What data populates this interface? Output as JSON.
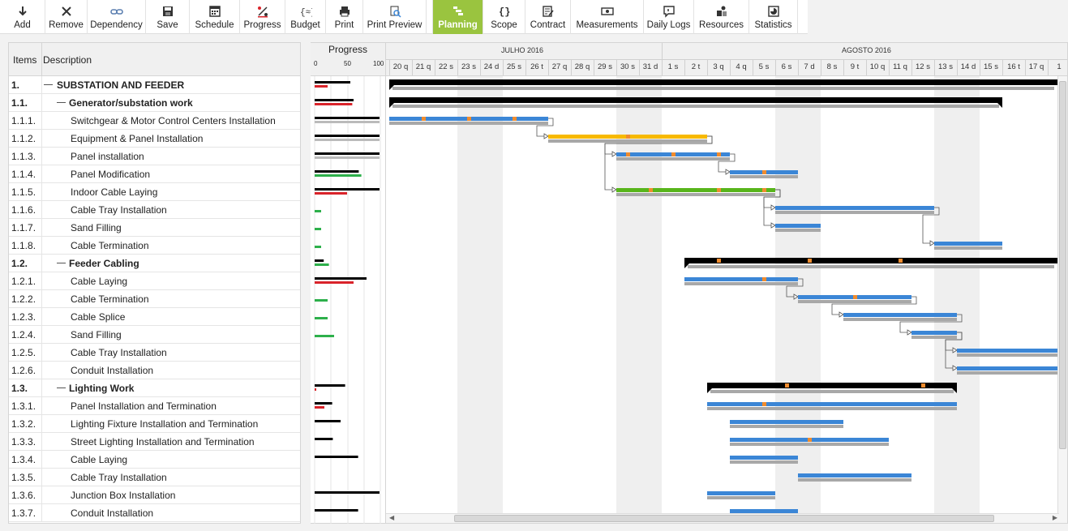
{
  "toolbar": {
    "buttons": [
      {
        "label": "Add",
        "icon": "arrow-down-icon"
      },
      {
        "label": "Remove",
        "icon": "close-icon"
      },
      {
        "label": "Dependency",
        "icon": "link-icon"
      },
      {
        "label": "Save",
        "icon": "floppy-icon"
      },
      {
        "label": "Schedule",
        "icon": "calendar-icon"
      },
      {
        "label": "Progress",
        "icon": "percent-icon"
      },
      {
        "label": "Budget",
        "icon": "money-icon"
      },
      {
        "label": "Print",
        "icon": "printer-icon"
      },
      {
        "label": "Print Preview",
        "icon": "print-preview-icon"
      },
      {
        "label": "Planning",
        "icon": "planning-icon",
        "active": true
      },
      {
        "label": "Scope",
        "icon": "braces-icon"
      },
      {
        "label": "Contract",
        "icon": "contract-icon"
      },
      {
        "label": "Measurements",
        "icon": "ruler-icon"
      },
      {
        "label": "Daily Logs",
        "icon": "chat-icon"
      },
      {
        "label": "Resources",
        "icon": "resources-icon"
      },
      {
        "label": "Statistics",
        "icon": "chart-icon"
      }
    ],
    "active_color": "#9ac43f"
  },
  "grid": {
    "col_items": "Items",
    "col_description": "Description",
    "rows": [
      {
        "num": "1.",
        "desc": "SUBSTATION AND FEEDER",
        "level": 0,
        "group": true
      },
      {
        "num": "1.1.",
        "desc": "Generator/substation work",
        "level": 1,
        "group": true
      },
      {
        "num": "1.1.1.",
        "desc": "Switchgear & Motor Control Centers Installation",
        "level": 2
      },
      {
        "num": "1.1.2.",
        "desc": "Equipment & Panel Installation",
        "level": 2
      },
      {
        "num": "1.1.3.",
        "desc": "Panel installation",
        "level": 2
      },
      {
        "num": "1.1.4.",
        "desc": "Panel Modification",
        "level": 2
      },
      {
        "num": "1.1.5.",
        "desc": "Indoor Cable Laying",
        "level": 2
      },
      {
        "num": "1.1.6.",
        "desc": "Cable Tray Installation",
        "level": 2
      },
      {
        "num": "1.1.7.",
        "desc": "Sand Filling",
        "level": 2
      },
      {
        "num": "1.1.8.",
        "desc": "Cable Termination",
        "level": 2
      },
      {
        "num": "1.2.",
        "desc": "Feeder Cabling",
        "level": 1,
        "group": true
      },
      {
        "num": "1.2.1.",
        "desc": "Cable Laying",
        "level": 2
      },
      {
        "num": "1.2.2.",
        "desc": "Cable Termination",
        "level": 2
      },
      {
        "num": "1.2.3.",
        "desc": "Cable Splice",
        "level": 2
      },
      {
        "num": "1.2.4.",
        "desc": "Sand Filling",
        "level": 2
      },
      {
        "num": "1.2.5.",
        "desc": "Cable Tray Installation",
        "level": 2
      },
      {
        "num": "1.2.6.",
        "desc": "Conduit Installation",
        "level": 2
      },
      {
        "num": "1.3.",
        "desc": "Lighting Work",
        "level": 1,
        "group": true
      },
      {
        "num": "1.3.1.",
        "desc": "Panel Installation and Termination",
        "level": 2
      },
      {
        "num": "1.3.2.",
        "desc": "Lighting Fixture Installation and Termination",
        "level": 2
      },
      {
        "num": "1.3.3.",
        "desc": "Street Lighting Installation and Termination",
        "level": 2
      },
      {
        "num": "1.3.4.",
        "desc": "Cable Laying",
        "level": 2
      },
      {
        "num": "1.3.5.",
        "desc": "Cable Tray Installation",
        "level": 2
      },
      {
        "num": "1.3.6.",
        "desc": "Junction Box Installation",
        "level": 2
      },
      {
        "num": "1.3.7.",
        "desc": "Conduit Installation",
        "level": 2
      }
    ]
  },
  "progress": {
    "title": "Progress",
    "scale": [
      "0",
      "50",
      "100"
    ],
    "rows": [
      {
        "planned": 55,
        "actual": 20,
        "actual_color": "#d9232a"
      },
      {
        "planned": 60,
        "actual": 58,
        "actual_color": "#d9232a"
      },
      {
        "planned": 100,
        "actual": 100,
        "actual_color": "#bbbbbb"
      },
      {
        "planned": 100,
        "actual": 100,
        "actual_color": "#bbbbbb"
      },
      {
        "planned": 100,
        "actual": 100,
        "actual_color": "#bbbbbb"
      },
      {
        "planned": 68,
        "actual": 72,
        "actual_color": "#2db04b"
      },
      {
        "planned": 100,
        "actual": 50,
        "actual_color": "#d9232a"
      },
      {
        "planned": 0,
        "actual": 10,
        "actual_color": "#2db04b"
      },
      {
        "planned": 0,
        "actual": 10,
        "actual_color": "#2db04b"
      },
      {
        "planned": 0,
        "actual": 10,
        "actual_color": "#2db04b"
      },
      {
        "planned": 14,
        "actual": 22,
        "actual_color": "#2db04b"
      },
      {
        "planned": 80,
        "actual": 60,
        "actual_color": "#d9232a"
      },
      {
        "planned": 0,
        "actual": 20,
        "actual_color": "#2db04b"
      },
      {
        "planned": 0,
        "actual": 20,
        "actual_color": "#2db04b"
      },
      {
        "planned": 0,
        "actual": 30,
        "actual_color": "#2db04b"
      },
      {
        "planned": 0,
        "actual": 0,
        "actual_color": "#2db04b"
      },
      {
        "planned": 0,
        "actual": 0,
        "actual_color": "#2db04b"
      },
      {
        "planned": 47,
        "actual": 2,
        "actual_color": "#d9232a"
      },
      {
        "planned": 27,
        "actual": 15,
        "actual_color": "#d9232a"
      },
      {
        "planned": 40,
        "actual": 0,
        "actual_color": "#bbbbbb"
      },
      {
        "planned": 28,
        "actual": 0,
        "actual_color": "#bbbbbb"
      },
      {
        "planned": 67,
        "actual": 0,
        "actual_color": "#bbbbbb"
      },
      {
        "planned": 0,
        "actual": 0,
        "actual_color": "#bbbbbb"
      },
      {
        "planned": 100,
        "actual": 0,
        "actual_color": "#bbbbbb"
      },
      {
        "planned": 67,
        "actual": 0,
        "actual_color": "#bbbbbb"
      }
    ]
  },
  "gantt": {
    "months": [
      {
        "label": "JULHO 2016",
        "start_day": 0,
        "days": 12
      },
      {
        "label": "AGOSTO 2016",
        "start_day": 12,
        "days": 18
      }
    ],
    "days": [
      "20 q",
      "21 q",
      "22 s",
      "23 s",
      "24 d",
      "25 s",
      "26 t",
      "27 q",
      "28 q",
      "29 s",
      "30 s",
      "31 d",
      "1 s",
      "2 t",
      "3 q",
      "4 q",
      "5 s",
      "6 s",
      "7 d",
      "8 s",
      "9 t",
      "10 q",
      "11 q",
      "12 s",
      "13 s",
      "14 d",
      "15 s",
      "16 t",
      "17 q",
      "1"
    ],
    "weekend_days": [
      3,
      4,
      10,
      11,
      17,
      18,
      24,
      25
    ],
    "colors": {
      "blue": "#3b86d6",
      "yellow": "#f7b900",
      "green": "#58b51b",
      "milestone": "#f08c2e"
    },
    "tasks": [
      {
        "row": 0,
        "type": "summary",
        "start": 0,
        "end": 30
      },
      {
        "row": 1,
        "type": "summary",
        "start": 0,
        "end": 27
      },
      {
        "row": 2,
        "type": "task",
        "start": 0,
        "end": 7,
        "color": "blue",
        "marks": [
          1.5,
          3.5,
          5.5
        ]
      },
      {
        "row": 3,
        "type": "task",
        "start": 7,
        "end": 14,
        "color": "yellow",
        "marks": [
          10.5
        ]
      },
      {
        "row": 4,
        "type": "task",
        "start": 10,
        "end": 15,
        "color": "blue",
        "marks": [
          10.5,
          12.5,
          14.5
        ]
      },
      {
        "row": 5,
        "type": "task",
        "start": 15,
        "end": 18,
        "color": "blue",
        "marks": [
          16.5
        ]
      },
      {
        "row": 6,
        "type": "task",
        "start": 10,
        "end": 17,
        "color": "green",
        "marks": [
          11.5,
          14.5,
          16.5
        ]
      },
      {
        "row": 7,
        "type": "task",
        "start": 17,
        "end": 24,
        "color": "blue",
        "marks": []
      },
      {
        "row": 8,
        "type": "task",
        "start": 17,
        "end": 19,
        "color": "blue",
        "marks": []
      },
      {
        "row": 9,
        "type": "task",
        "start": 24,
        "end": 27,
        "color": "blue",
        "marks": []
      },
      {
        "row": 10,
        "type": "summary",
        "start": 13,
        "end": 30,
        "marks": [
          14.5,
          18.5,
          22.5
        ]
      },
      {
        "row": 11,
        "type": "task",
        "start": 13,
        "end": 18,
        "color": "blue",
        "marks": [
          16.5
        ]
      },
      {
        "row": 12,
        "type": "task",
        "start": 18,
        "end": 23,
        "color": "blue",
        "marks": [
          20.5
        ]
      },
      {
        "row": 13,
        "type": "task",
        "start": 20,
        "end": 25,
        "color": "blue",
        "marks": []
      },
      {
        "row": 14,
        "type": "task",
        "start": 23,
        "end": 25,
        "color": "blue",
        "marks": []
      },
      {
        "row": 15,
        "type": "task",
        "start": 25,
        "end": 30,
        "color": "blue",
        "marks": []
      },
      {
        "row": 16,
        "type": "task",
        "start": 25,
        "end": 30,
        "color": "blue",
        "marks": []
      },
      {
        "row": 17,
        "type": "summary",
        "start": 14,
        "end": 25,
        "marks": [
          17.5,
          23.5
        ]
      },
      {
        "row": 18,
        "type": "task",
        "start": 14,
        "end": 25,
        "color": "blue",
        "marks": [
          16.5
        ]
      },
      {
        "row": 19,
        "type": "task",
        "start": 15,
        "end": 20,
        "color": "blue",
        "marks": []
      },
      {
        "row": 20,
        "type": "task",
        "start": 15,
        "end": 22,
        "color": "blue",
        "marks": [
          18.5
        ]
      },
      {
        "row": 21,
        "type": "task",
        "start": 15,
        "end": 18,
        "color": "blue",
        "marks": []
      },
      {
        "row": 22,
        "type": "task",
        "start": 18,
        "end": 23,
        "color": "blue",
        "marks": []
      },
      {
        "row": 23,
        "type": "task",
        "start": 14,
        "end": 17,
        "color": "blue",
        "marks": []
      },
      {
        "row": 24,
        "type": "task",
        "start": 15,
        "end": 18,
        "color": "blue",
        "marks": []
      }
    ]
  }
}
